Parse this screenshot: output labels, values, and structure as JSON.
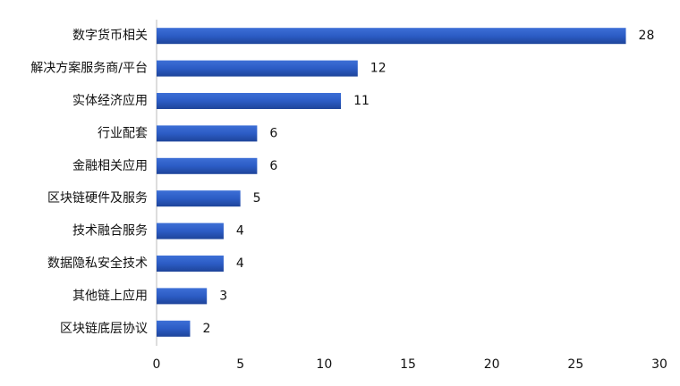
{
  "chart_data": {
    "type": "barh",
    "categories": [
      "数字货币相关",
      "解决方案服务商/平台",
      "实体经济应用",
      "行业配套",
      "金融相关应用",
      "区块链硬件及服务",
      "技术融合服务",
      "数据隐私安全技术",
      "其他链上应用",
      "区块链底层协议"
    ],
    "values": [
      28,
      12,
      11,
      6,
      6,
      5,
      4,
      4,
      3,
      2
    ],
    "color": "#2c5cc5",
    "xlim": [
      0,
      30
    ],
    "xticks": [
      0,
      5,
      10,
      15,
      20,
      25,
      30
    ],
    "grid": false
  }
}
